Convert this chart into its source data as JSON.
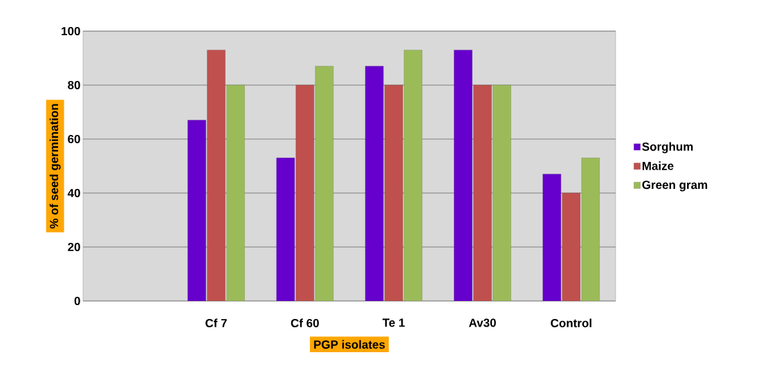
{
  "chart_data": {
    "type": "bar",
    "xlabel": "PGP isolates",
    "ylabel": "% of seed germination",
    "categories": [
      null,
      "Cf 7",
      "Cf 60",
      "Te 1",
      "Av30",
      "Control"
    ],
    "series": [
      {
        "name": "Sorghum",
        "color": "#6600cc",
        "values": [
          null,
          67,
          53,
          87,
          93,
          47
        ]
      },
      {
        "name": "Maize",
        "color": "#c0504d",
        "values": [
          null,
          93,
          80,
          80,
          80,
          40
        ]
      },
      {
        "name": "Green gram",
        "color": "#9bbb59",
        "values": [
          null,
          80,
          87,
          93,
          80,
          53
        ]
      }
    ],
    "ylim": [
      0,
      100
    ],
    "yticks": [
      0,
      20,
      40,
      60,
      80,
      100
    ],
    "grid": "y",
    "legend": "right"
  }
}
